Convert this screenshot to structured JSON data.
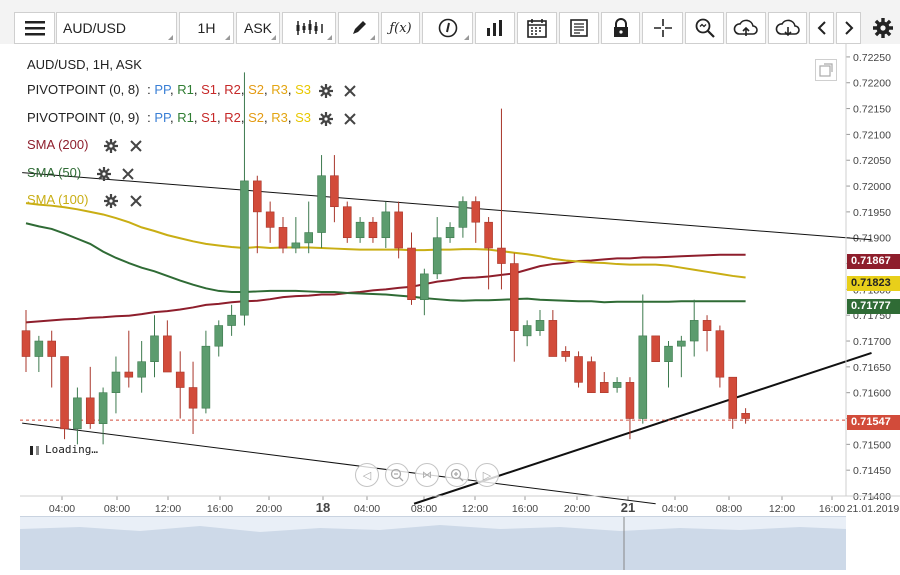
{
  "toolbar": {
    "symbol": "AUD/USD",
    "timeframe": "1H",
    "price_type": "ASK"
  },
  "legend": {
    "title": "AUD/USD, 1H, ASK",
    "pivot1_name": "PIVOTPOINT (0, 8)",
    "pivot2_name": "PIVOTPOINT (0, 9)",
    "pivot_labels": [
      {
        "text": "PP",
        "color": "#3a7fd5"
      },
      {
        "text": "R1",
        "color": "#2f7d32"
      },
      {
        "text": "S1",
        "color": "#c62828"
      },
      {
        "text": "R2",
        "color": "#c62828"
      },
      {
        "text": "S2",
        "color": "#e39a12"
      },
      {
        "text": "R3",
        "color": "#e3a512"
      },
      {
        "text": "S3",
        "color": "#e8c800"
      }
    ],
    "sma200": "SMA (200)",
    "sma50": "SMA (50)",
    "sma100": "SMA (100)",
    "colors": {
      "sma200": "#8e1e2c",
      "sma50": "#2f6b35",
      "sma100": "#c9ae14"
    }
  },
  "loading_text": "Loading…",
  "price_tags": {
    "sma200": "0.71867",
    "sma100": "0.71823",
    "sma50": "0.71777",
    "last": "0.71547"
  },
  "chart_data": {
    "type": "candlestick",
    "title": "AUD/USD, 1H, ASK",
    "ylim": [
      0.714,
      0.72275
    ],
    "yticks": [
      "0.71400",
      "0.71450",
      "0.71500",
      "0.71550",
      "0.71600",
      "0.71650",
      "0.71700",
      "0.71750",
      "0.71800",
      "0.71850",
      "0.71900",
      "0.71950",
      "0.72000",
      "0.72050",
      "0.72100",
      "0.72150",
      "0.72200",
      "0.72250"
    ],
    "xticks": [
      "04:00",
      "08:00",
      "12:00",
      "16:00",
      "20:00",
      "18",
      "04:00",
      "08:00",
      "12:00",
      "16:00",
      "20:00",
      "21",
      "04:00",
      "08:00",
      "12:00",
      "16:00",
      "21.01.2019"
    ],
    "candle_width_fraction": 0.62,
    "colors": {
      "up": "#5c9c6e",
      "down": "#d24b3a"
    },
    "candles": [
      {
        "o": 0.7172,
        "h": 0.7176,
        "l": 0.7164,
        "c": 0.7167
      },
      {
        "o": 0.7167,
        "h": 0.7171,
        "l": 0.7164,
        "c": 0.717
      },
      {
        "o": 0.717,
        "h": 0.7172,
        "l": 0.7161,
        "c": 0.7167
      },
      {
        "o": 0.7167,
        "h": 0.7167,
        "l": 0.7151,
        "c": 0.7153
      },
      {
        "o": 0.7153,
        "h": 0.7161,
        "l": 0.715,
        "c": 0.7159
      },
      {
        "o": 0.7159,
        "h": 0.7165,
        "l": 0.7153,
        "c": 0.7154
      },
      {
        "o": 0.7154,
        "h": 0.7161,
        "l": 0.715,
        "c": 0.716
      },
      {
        "o": 0.716,
        "h": 0.7167,
        "l": 0.7156,
        "c": 0.7164
      },
      {
        "o": 0.7164,
        "h": 0.7172,
        "l": 0.7161,
        "c": 0.7163
      },
      {
        "o": 0.7163,
        "h": 0.717,
        "l": 0.716,
        "c": 0.7166
      },
      {
        "o": 0.7166,
        "h": 0.7175,
        "l": 0.7163,
        "c": 0.7171
      },
      {
        "o": 0.7171,
        "h": 0.7174,
        "l": 0.7164,
        "c": 0.7164
      },
      {
        "o": 0.7164,
        "h": 0.7168,
        "l": 0.7155,
        "c": 0.7161
      },
      {
        "o": 0.7161,
        "h": 0.7166,
        "l": 0.7152,
        "c": 0.7157
      },
      {
        "o": 0.7157,
        "h": 0.7172,
        "l": 0.7156,
        "c": 0.7169
      },
      {
        "o": 0.7169,
        "h": 0.7174,
        "l": 0.7167,
        "c": 0.7173
      },
      {
        "o": 0.7173,
        "h": 0.7177,
        "l": 0.7171,
        "c": 0.7175
      },
      {
        "o": 0.7175,
        "h": 0.7222,
        "l": 0.7173,
        "c": 0.7201
      },
      {
        "o": 0.7201,
        "h": 0.7202,
        "l": 0.7187,
        "c": 0.7195
      },
      {
        "o": 0.7195,
        "h": 0.7197,
        "l": 0.7189,
        "c": 0.7192
      },
      {
        "o": 0.7192,
        "h": 0.7194,
        "l": 0.7187,
        "c": 0.7188
      },
      {
        "o": 0.7188,
        "h": 0.7194,
        "l": 0.7187,
        "c": 0.7189
      },
      {
        "o": 0.7189,
        "h": 0.7197,
        "l": 0.7187,
        "c": 0.7191
      },
      {
        "o": 0.7191,
        "h": 0.7206,
        "l": 0.7188,
        "c": 0.7202
      },
      {
        "o": 0.7202,
        "h": 0.7206,
        "l": 0.7193,
        "c": 0.7196
      },
      {
        "o": 0.7196,
        "h": 0.7197,
        "l": 0.7189,
        "c": 0.719
      },
      {
        "o": 0.719,
        "h": 0.7194,
        "l": 0.7189,
        "c": 0.7193
      },
      {
        "o": 0.7193,
        "h": 0.7194,
        "l": 0.7189,
        "c": 0.719
      },
      {
        "o": 0.719,
        "h": 0.7197,
        "l": 0.7188,
        "c": 0.7195
      },
      {
        "o": 0.7195,
        "h": 0.7197,
        "l": 0.7186,
        "c": 0.7188
      },
      {
        "o": 0.7188,
        "h": 0.7191,
        "l": 0.7177,
        "c": 0.7178
      },
      {
        "o": 0.7178,
        "h": 0.7184,
        "l": 0.7175,
        "c": 0.7183
      },
      {
        "o": 0.7183,
        "h": 0.7194,
        "l": 0.7182,
        "c": 0.719
      },
      {
        "o": 0.719,
        "h": 0.7193,
        "l": 0.7189,
        "c": 0.7192
      },
      {
        "o": 0.7192,
        "h": 0.7198,
        "l": 0.719,
        "c": 0.7197
      },
      {
        "o": 0.7197,
        "h": 0.7198,
        "l": 0.7189,
        "c": 0.7193
      },
      {
        "o": 0.7193,
        "h": 0.7194,
        "l": 0.718,
        "c": 0.7188
      },
      {
        "o": 0.7188,
        "h": 0.7215,
        "l": 0.718,
        "c": 0.7185
      },
      {
        "o": 0.7185,
        "h": 0.7187,
        "l": 0.7166,
        "c": 0.7172
      },
      {
        "o": 0.7171,
        "h": 0.7174,
        "l": 0.7169,
        "c": 0.7173
      },
      {
        "o": 0.7172,
        "h": 0.7176,
        "l": 0.7171,
        "c": 0.7174
      },
      {
        "o": 0.7174,
        "h": 0.7176,
        "l": 0.7167,
        "c": 0.7167
      },
      {
        "o": 0.7168,
        "h": 0.7169,
        "l": 0.7166,
        "c": 0.7167
      },
      {
        "o": 0.7167,
        "h": 0.7168,
        "l": 0.7161,
        "c": 0.7162
      },
      {
        "o": 0.7166,
        "h": 0.7167,
        "l": 0.716,
        "c": 0.716
      },
      {
        "o": 0.7162,
        "h": 0.7164,
        "l": 0.716,
        "c": 0.716
      },
      {
        "o": 0.7161,
        "h": 0.7163,
        "l": 0.716,
        "c": 0.7162
      },
      {
        "o": 0.7162,
        "h": 0.7163,
        "l": 0.7151,
        "c": 0.7155
      },
      {
        "o": 0.7155,
        "h": 0.7179,
        "l": 0.7154,
        "c": 0.7171
      },
      {
        "o": 0.7171,
        "h": 0.7171,
        "l": 0.7166,
        "c": 0.7166
      },
      {
        "o": 0.7166,
        "h": 0.717,
        "l": 0.7161,
        "c": 0.7169
      },
      {
        "o": 0.7169,
        "h": 0.7171,
        "l": 0.7163,
        "c": 0.717
      },
      {
        "o": 0.717,
        "h": 0.7178,
        "l": 0.7167,
        "c": 0.7174
      },
      {
        "o": 0.7174,
        "h": 0.7175,
        "l": 0.7168,
        "c": 0.7172
      },
      {
        "o": 0.7172,
        "h": 0.7173,
        "l": 0.7161,
        "c": 0.7163
      },
      {
        "o": 0.7163,
        "h": 0.7163,
        "l": 0.7153,
        "c": 0.7155
      },
      {
        "o": 0.7156,
        "h": 0.7157,
        "l": 0.7154,
        "c": 0.7155
      }
    ],
    "sma200": [
      0.71736,
      0.71738,
      0.7174,
      0.71742,
      0.71743,
      0.71745,
      0.71746,
      0.71748,
      0.71749,
      0.71752,
      0.71756,
      0.71758,
      0.71761,
      0.71765,
      0.7177,
      0.71772,
      0.71775,
      0.71777,
      0.71778,
      0.71781,
      0.71785,
      0.71787,
      0.71788,
      0.7179,
      0.7179,
      0.71793,
      0.71795,
      0.71798,
      0.718,
      0.71803,
      0.71805,
      0.7181,
      0.71815,
      0.71818,
      0.71822,
      0.71823,
      0.71825,
      0.71828,
      0.71831,
      0.71838,
      0.71845,
      0.71849,
      0.71851,
      0.71855,
      0.71856,
      0.71858,
      0.7186,
      0.7186,
      0.71862,
      0.71862,
      0.71863,
      0.71864,
      0.71865,
      0.71866,
      0.71867,
      0.71867,
      0.71867
    ],
    "sma100": [
      0.71967,
      0.71964,
      0.71962,
      0.71959,
      0.71955,
      0.7195,
      0.71945,
      0.71938,
      0.7193,
      0.7192,
      0.71913,
      0.71905,
      0.71899,
      0.71893,
      0.71888,
      0.71885,
      0.71882,
      0.7188,
      0.71882,
      0.7188,
      0.71881,
      0.71881,
      0.71881,
      0.7188,
      0.71879,
      0.71878,
      0.71877,
      0.71877,
      0.71877,
      0.71877,
      0.71876,
      0.71876,
      0.71877,
      0.71877,
      0.71878,
      0.71878,
      0.71877,
      0.71874,
      0.71871,
      0.71868,
      0.71864,
      0.71859,
      0.71856,
      0.71854,
      0.71852,
      0.71851,
      0.71849,
      0.71848,
      0.71848,
      0.71848,
      0.71846,
      0.71842,
      0.71838,
      0.71834,
      0.7183,
      0.71826,
      0.71823
    ],
    "sma50": [
      0.71928,
      0.71922,
      0.71917,
      0.71908,
      0.71898,
      0.71888,
      0.71873,
      0.71861,
      0.71851,
      0.71842,
      0.71835,
      0.71826,
      0.71817,
      0.71809,
      0.71802,
      0.71797,
      0.71795,
      0.71795,
      0.71796,
      0.71797,
      0.71797,
      0.71797,
      0.71796,
      0.71795,
      0.71795,
      0.71793,
      0.71792,
      0.71791,
      0.7179,
      0.71788,
      0.71786,
      0.71783,
      0.71781,
      0.71779,
      0.71778,
      0.71779,
      0.71779,
      0.7178,
      0.71781,
      0.71782,
      0.7178,
      0.71779,
      0.71778,
      0.71777,
      0.71777,
      0.71775,
      0.71776,
      0.71776,
      0.71776,
      0.71776,
      0.71776,
      0.71777,
      0.71777,
      0.71777,
      0.71777,
      0.71777,
      0.71777
    ],
    "trendlines": [
      {
        "from": [
          -0.3,
          0.72026
        ],
        "to": [
          65.8,
          0.71896
        ],
        "color": "#111111",
        "width": 1
      },
      {
        "from": [
          -0.3,
          0.71541
        ],
        "to": [
          49,
          0.71385
        ],
        "color": "#111111",
        "width": 1
      },
      {
        "from": [
          30.2,
          0.71385
        ],
        "to": [
          65.8,
          0.71677
        ],
        "color": "#111111",
        "width": 2
      }
    ],
    "last_price": 0.71547
  }
}
